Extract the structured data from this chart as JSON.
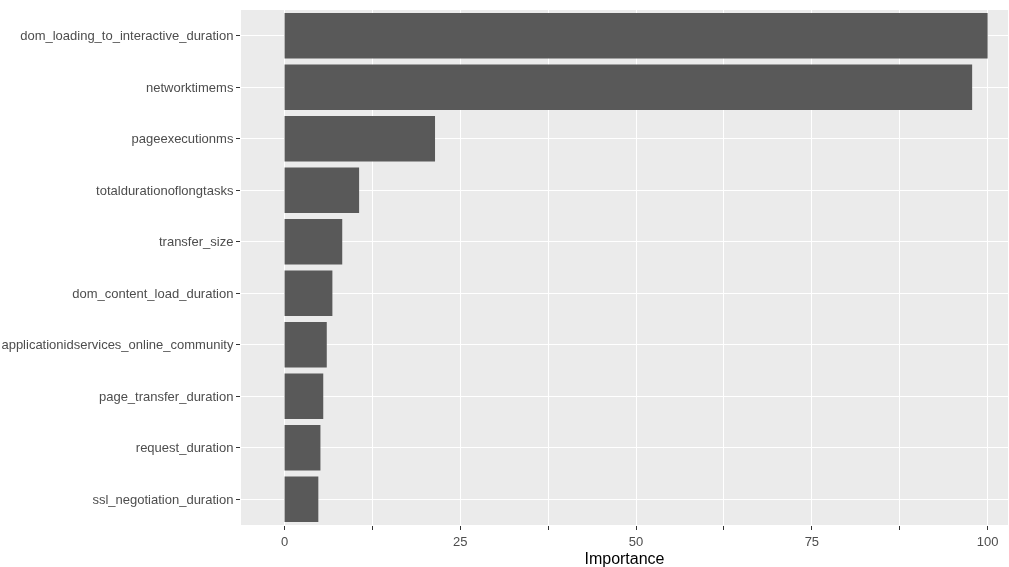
{
  "chart_data": {
    "type": "bar",
    "orientation": "horizontal",
    "xlabel": "Importance",
    "categories": [
      "dom_loading_to_interactive_duration",
      "networktimems",
      "pageexecutionms",
      "totaldurationoflongtasks",
      "transfer_size",
      "dom_content_load_duration",
      "applicationidservices_online_community",
      "page_transfer_duration",
      "request_duration",
      "ssl_negotiation_duration"
    ],
    "values": [
      100,
      97.8,
      21.4,
      10.6,
      8.2,
      6.8,
      6.0,
      5.5,
      5.1,
      4.8
    ],
    "color": "#595959",
    "xlim": [
      -6.2,
      102.9
    ],
    "xticks": [
      0,
      {
        "value": 12.5,
        "label": null
      },
      25,
      {
        "value": 37.5,
        "label": null
      },
      50,
      {
        "value": 62.5,
        "label": null
      },
      75,
      {
        "value": 87.5,
        "label": null
      },
      100
    ],
    "grid": true
  }
}
